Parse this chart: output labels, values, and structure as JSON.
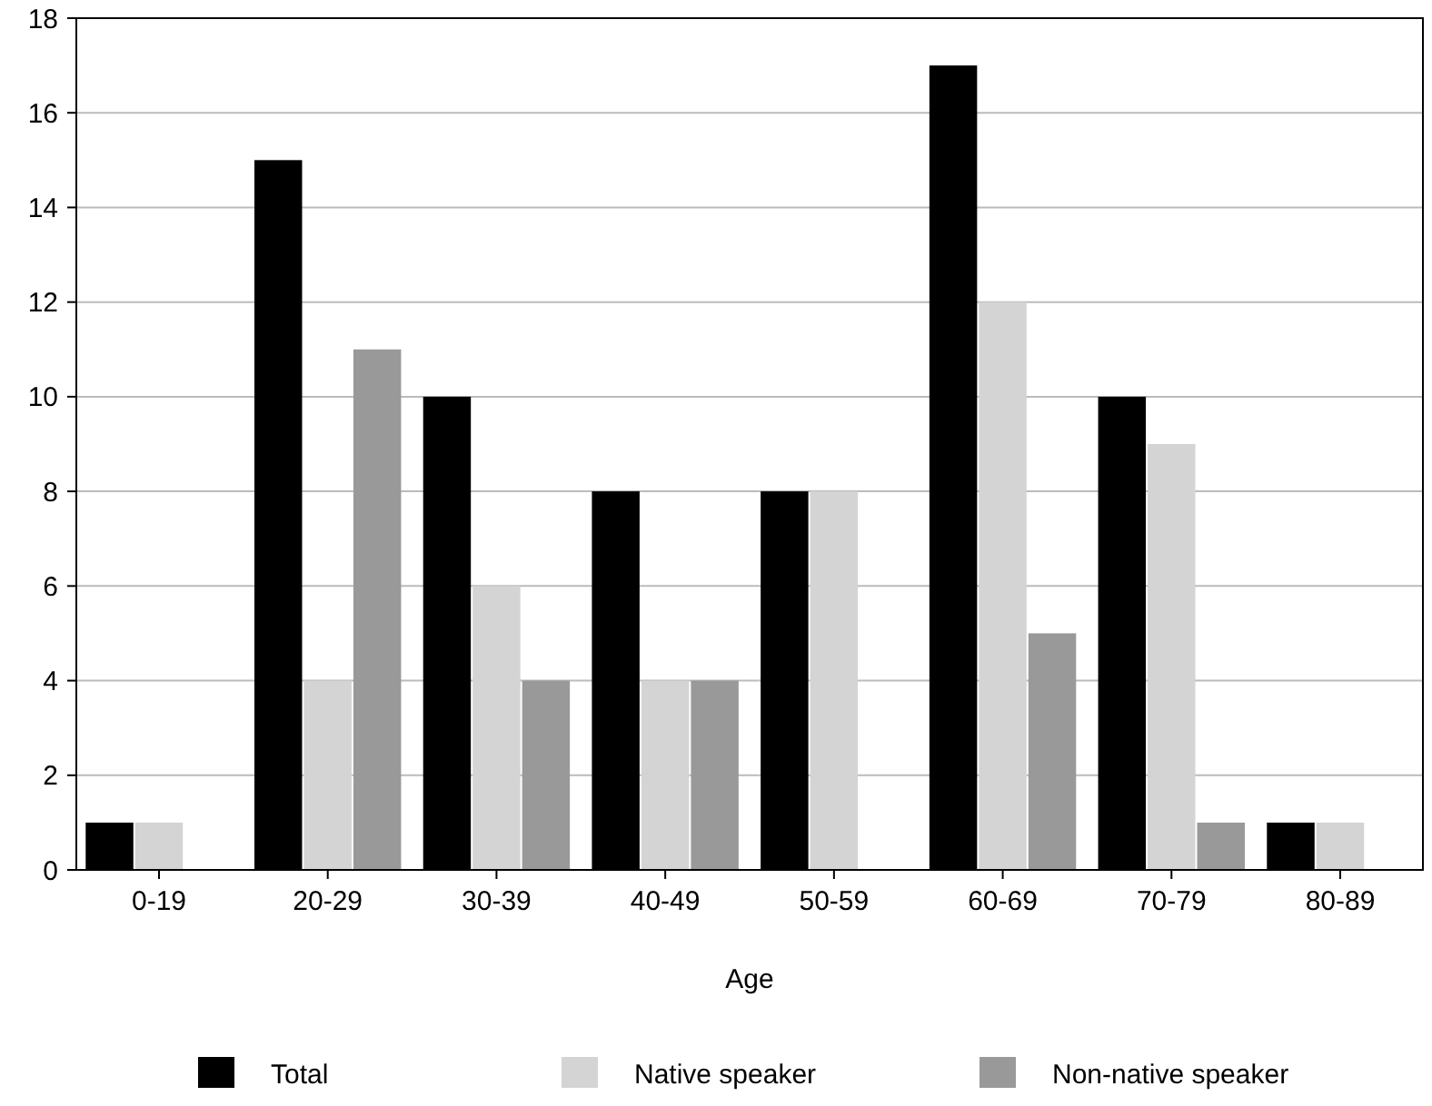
{
  "chart_data": {
    "type": "bar",
    "xlabel": "Age",
    "categories": [
      "0-19",
      "20-29",
      "30-39",
      "40-49",
      "50-59",
      "60-69",
      "70-79",
      "80-89"
    ],
    "series": [
      {
        "name": "Total",
        "color": "#000000",
        "values": [
          1,
          15,
          10,
          8,
          8,
          17,
          10,
          1
        ]
      },
      {
        "name": "Native speaker",
        "color": "#d4d4d4",
        "values": [
          1,
          4,
          6,
          4,
          8,
          12,
          9,
          1
        ]
      },
      {
        "name": "Non-native speaker",
        "color": "#999999",
        "values": [
          0,
          11,
          4,
          4,
          0,
          5,
          1,
          0
        ]
      }
    ],
    "ylim": [
      0,
      18
    ],
    "yticks": [
      0,
      2,
      4,
      6,
      8,
      10,
      12,
      14,
      16,
      18
    ],
    "grid": "y",
    "legend": "bottom"
  }
}
